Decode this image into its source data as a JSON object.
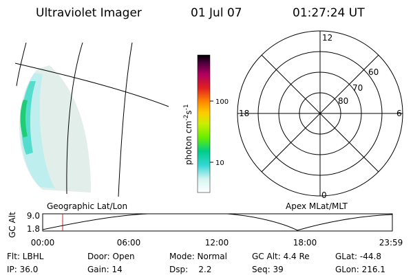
{
  "header": {
    "instrument": "Ultraviolet Imager",
    "date": "01 Jul 07",
    "time": "01:27:24 UT"
  },
  "colorbar": {
    "unit": [
      "photon cm",
      "-2",
      "s",
      "-1"
    ],
    "ticks": [
      "100",
      "10"
    ]
  },
  "polar": {
    "lat_labels": [
      "80",
      "70",
      "60"
    ],
    "mlt_labels": [
      "12",
      "0",
      "18",
      "6"
    ]
  },
  "strip": {
    "left_label": "Geographic Lat/Lon",
    "right_label": "Apex MLat/MLT",
    "y_label": "GC Alt",
    "y_ticks": [
      "9.0",
      "1.8"
    ],
    "x_ticks": [
      "00:00",
      "06:00",
      "12:00",
      "18:00",
      "23:59"
    ]
  },
  "info": {
    "rows": [
      [
        "Flt: LBHL",
        "Door: Open",
        "Mode: Normal",
        "GC Alt: 4.4 Re",
        "GLat: -44.8"
      ],
      [
        "IP: 36.0",
        "Gain: 14",
        "Dsp:    2.2",
        "Seq: 39",
        "GLon: 216.1"
      ]
    ]
  }
}
